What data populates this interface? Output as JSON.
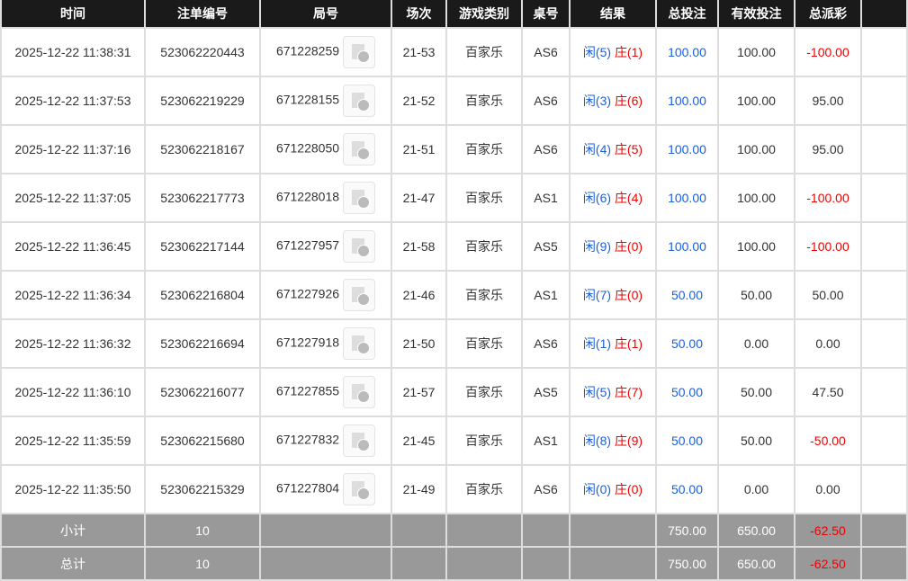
{
  "headers": [
    "时间",
    "注单编号",
    "局号",
    "场次",
    "游戏类别",
    "桌号",
    "结果",
    "总投注",
    "有效投注",
    "总派彩",
    ""
  ],
  "rows": [
    {
      "time": "2025-12-22 11:38:31",
      "bet_id": "523062220443",
      "round": "671228259",
      "session": "21-53",
      "game": "百家乐",
      "table": "AS6",
      "player": "闲(5)",
      "banker": "庄(1)",
      "total": "100.00",
      "valid": "100.00",
      "payout": "-100.00"
    },
    {
      "time": "2025-12-22 11:37:53",
      "bet_id": "523062219229",
      "round": "671228155",
      "session": "21-52",
      "game": "百家乐",
      "table": "AS6",
      "player": "闲(3)",
      "banker": "庄(6)",
      "total": "100.00",
      "valid": "100.00",
      "payout": "95.00"
    },
    {
      "time": "2025-12-22 11:37:16",
      "bet_id": "523062218167",
      "round": "671228050",
      "session": "21-51",
      "game": "百家乐",
      "table": "AS6",
      "player": "闲(4)",
      "banker": "庄(5)",
      "total": "100.00",
      "valid": "100.00",
      "payout": "95.00"
    },
    {
      "time": "2025-12-22 11:37:05",
      "bet_id": "523062217773",
      "round": "671228018",
      "session": "21-47",
      "game": "百家乐",
      "table": "AS1",
      "player": "闲(6)",
      "banker": "庄(4)",
      "total": "100.00",
      "valid": "100.00",
      "payout": "-100.00"
    },
    {
      "time": "2025-12-22 11:36:45",
      "bet_id": "523062217144",
      "round": "671227957",
      "session": "21-58",
      "game": "百家乐",
      "table": "AS5",
      "player": "闲(9)",
      "banker": "庄(0)",
      "total": "100.00",
      "valid": "100.00",
      "payout": "-100.00"
    },
    {
      "time": "2025-12-22 11:36:34",
      "bet_id": "523062216804",
      "round": "671227926",
      "session": "21-46",
      "game": "百家乐",
      "table": "AS1",
      "player": "闲(7)",
      "banker": "庄(0)",
      "total": "50.00",
      "valid": "50.00",
      "payout": "50.00"
    },
    {
      "time": "2025-12-22 11:36:32",
      "bet_id": "523062216694",
      "round": "671227918",
      "session": "21-50",
      "game": "百家乐",
      "table": "AS6",
      "player": "闲(1)",
      "banker": "庄(1)",
      "total": "50.00",
      "valid": "0.00",
      "payout": "0.00"
    },
    {
      "time": "2025-12-22 11:36:10",
      "bet_id": "523062216077",
      "round": "671227855",
      "session": "21-57",
      "game": "百家乐",
      "table": "AS5",
      "player": "闲(5)",
      "banker": "庄(7)",
      "total": "50.00",
      "valid": "50.00",
      "payout": "47.50"
    },
    {
      "time": "2025-12-22 11:35:59",
      "bet_id": "523062215680",
      "round": "671227832",
      "session": "21-45",
      "game": "百家乐",
      "table": "AS1",
      "player": "闲(8)",
      "banker": "庄(9)",
      "total": "50.00",
      "valid": "50.00",
      "payout": "-50.00"
    },
    {
      "time": "2025-12-22 11:35:50",
      "bet_id": "523062215329",
      "round": "671227804",
      "session": "21-49",
      "game": "百家乐",
      "table": "AS6",
      "player": "闲(0)",
      "banker": "庄(0)",
      "total": "50.00",
      "valid": "0.00",
      "payout": "0.00"
    }
  ],
  "subtotal": {
    "label": "小计",
    "count": "10",
    "total": "750.00",
    "valid": "650.00",
    "payout": "-62.50"
  },
  "grand_total": {
    "label": "总计",
    "count": "10",
    "total": "750.00",
    "valid": "650.00",
    "payout": "-62.50"
  },
  "colors": {
    "header_bg": "#1a1a1a",
    "summary_bg": "#999999",
    "blue": "#1e5fd6",
    "red": "#ee0000"
  }
}
